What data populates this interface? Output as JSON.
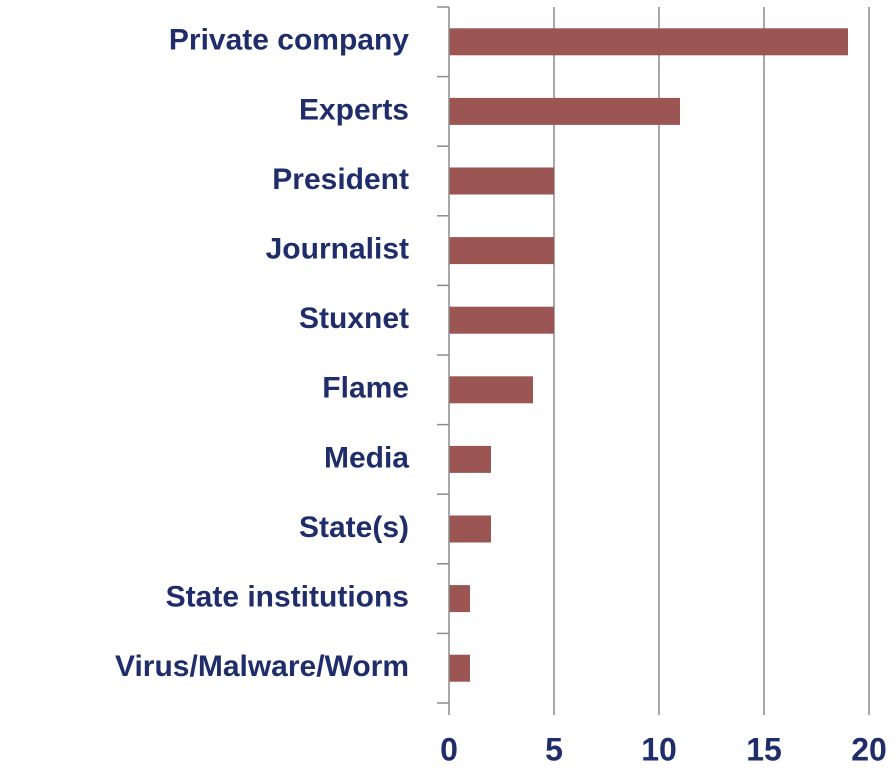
{
  "chart_data": {
    "type": "bar",
    "orientation": "horizontal",
    "categories": [
      "Private company",
      "Experts",
      "President",
      "Journalist",
      "Stuxnet",
      "Flame",
      "Media",
      "State(s)",
      "State institutions",
      "Virus/Malware/Worm"
    ],
    "values": [
      19,
      11,
      5,
      5,
      5,
      4,
      2,
      2,
      1,
      1
    ],
    "xlim": [
      0,
      20
    ],
    "xticks": [
      0,
      5,
      10,
      15,
      20
    ],
    "xtick_labels": [
      "0",
      "5",
      "10",
      "15",
      "20"
    ],
    "title": "",
    "xlabel": "",
    "ylabel": "",
    "grid": "vertical",
    "legend": "none",
    "colors": {
      "bar": "#9b5553",
      "label": "#1f2d6b",
      "grid": "#8c8c8c",
      "axis": "#8c8c8c"
    }
  }
}
